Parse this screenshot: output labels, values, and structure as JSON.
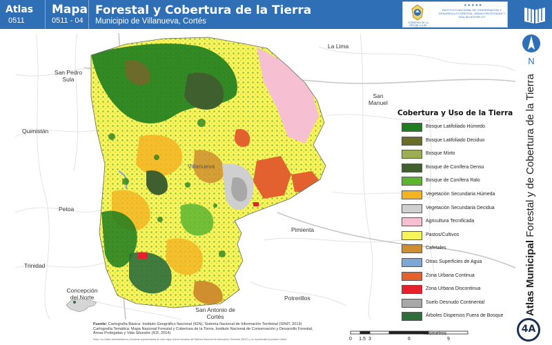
{
  "header": {
    "atlas_label": "Atlas",
    "atlas_code": "0511",
    "mapa_label": "Mapa",
    "mapa_code": "0511 - 04",
    "title": "Forestal y Cobertura de la Tierra",
    "subtitle": "Municipio de Villanueva, Cortés",
    "gov_text": "GOBIERNO DE LA REPÚBLICA DE HONDURAS",
    "stars": "★★★★★",
    "institute_text": "INSTITUTO NACIONAL DE CONSERVACIÓN Y DESARROLLO FORESTAL, ÁREAS PROTEGIDAS Y VIDA SILVESTRE ICF"
  },
  "side_title": {
    "bold": "Atlas Municipal",
    "rest": "Forestal y de Cobertura de la Tierra"
  },
  "north_label": "N",
  "plate_label": "4A",
  "places": [
    {
      "name": "La Lima"
    },
    {
      "name": "San Pedro Sula"
    },
    {
      "name": "San Manuel"
    },
    {
      "name": "Quimistán"
    },
    {
      "name": "Villanueva"
    },
    {
      "name": "Petoa"
    },
    {
      "name": "Pimienta"
    },
    {
      "name": "Trinidad"
    },
    {
      "name": "San Antonio de Cortés"
    },
    {
      "name": "Potrerillos"
    },
    {
      "name": "Concepción del Norte"
    }
  ],
  "legend": {
    "title": "Cobertura y Uso de la Tierra",
    "items": [
      {
        "label": "Bosque Latifoliado Húmedo",
        "color": "#1e7d1e"
      },
      {
        "label": "Bosque Latifoliado Deciduo",
        "color": "#6b6b2a"
      },
      {
        "label": "Bosque Mixto",
        "color": "#9cae52"
      },
      {
        "label": "Bosque de Conífera Denso",
        "color": "#3f5f2e"
      },
      {
        "label": "Bosque de Conífera Ralo",
        "color": "#5cb531"
      },
      {
        "label": "Vegetación Secundaria Húmeda",
        "color": "#f4b321"
      },
      {
        "label": "Vegetación Secundaria Decidua",
        "color": "#cfcfcf"
      },
      {
        "label": "Agricultura Tecnificada",
        "color": "#f6bfd2"
      },
      {
        "label": "Pastos/Cultivos",
        "color": "#f6f65c"
      },
      {
        "label": "Cafetales",
        "color": "#cf8f2f"
      },
      {
        "label": "Otras Superficies de Agua",
        "color": "#7ea7d6"
      },
      {
        "label": "Zona Urbana Continua",
        "color": "#e2612e"
      },
      {
        "label": "Zona Urbana Discontinua",
        "color": "#e8202a"
      },
      {
        "label": "Suelo Desnudo Continental",
        "color": "#a8a8a8"
      },
      {
        "label": "Árboles Dispersos Fuera de Bosque",
        "color": "#2e6e3a"
      }
    ]
  },
  "sources": {
    "heading": "Fuente:",
    "lines": [
      "Cartografía Básica: Instituto Geográfico Nacional (IGN), Sistema Nacional de Información Territorial (SINIT, 2013)",
      "Cartografía Temática: Mapa Nacional Forestal y Cobertura de la Tierra, Instituto Nacional de Conservación y Desarrollo Forestal,",
      "Áreas Protegidas y Vida Silvestre (ICF, 2014)"
    ],
    "notes": "Nota: Los límites administrativos y fronteras representados en este mapa, fueron tomados del Sistema Nacional de Información Territorial (SINIT) y no representan la posición oficial."
  },
  "scale": {
    "ticks": [
      "0",
      "1.5",
      "3",
      "6",
      "9"
    ],
    "unit": "Kilómetros"
  }
}
